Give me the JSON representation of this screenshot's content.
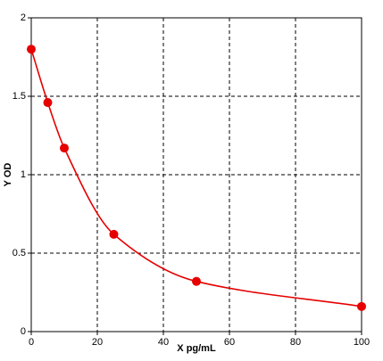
{
  "chart_data": {
    "type": "scatter",
    "x_label": "X pg/mL",
    "y_label": "Y OD",
    "x": [
      0,
      5,
      10,
      25,
      50,
      100
    ],
    "series": [
      {
        "color": "#e60000",
        "values": [
          1.8,
          1.46,
          1.17,
          0.62,
          0.32,
          0.16
        ]
      }
    ],
    "xlim": [
      0,
      100
    ],
    "xticks": [
      0,
      20,
      40,
      60,
      80,
      100
    ],
    "ylim": [
      0,
      2
    ],
    "yticks": [
      0,
      0.5,
      1,
      1.5,
      2
    ],
    "grid": true,
    "fit_line": true
  }
}
